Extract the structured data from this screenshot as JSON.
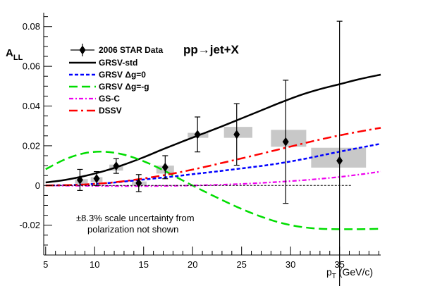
{
  "chart_data": {
    "type": "scatter",
    "ylabel_main": "A",
    "ylabel_sub": "LL",
    "xlabel_main": "p",
    "xlabel_sub": "T",
    "xlabel_unit": " (GeV/c)",
    "process": "pp→jet+X",
    "xlim": [
      4.8,
      39.2
    ],
    "ylim": [
      -0.035,
      0.087
    ],
    "x_ticks": [
      5,
      10,
      15,
      20,
      25,
      30,
      35
    ],
    "y_ticks": [
      -0.02,
      0,
      0.02,
      0.04,
      0.06,
      0.08
    ],
    "y_tick_labels": [
      "-0.02",
      "0",
      "0.02",
      "0.04",
      "0.06",
      "0.08"
    ],
    "data_series": {
      "name": "2006 STAR Data",
      "points": [
        {
          "x": 8.5,
          "y": 0.0028,
          "err": 0.0053,
          "sys_x": [
            8.0,
            9.3
          ],
          "sys_y": [
            0.0005,
            0.0032
          ]
        },
        {
          "x": 10.2,
          "y": 0.0035,
          "err": 0.0035,
          "sys_x": [
            9.6,
            10.8
          ],
          "sys_y": [
            0.0015,
            0.0042
          ]
        },
        {
          "x": 12.2,
          "y": 0.0098,
          "err": 0.0037,
          "sys_x": [
            11.5,
            12.9
          ],
          "sys_y": [
            0.0075,
            0.0105
          ]
        },
        {
          "x": 14.5,
          "y": 0.0012,
          "err": 0.0043,
          "sys_x": [
            13.8,
            15.3
          ],
          "sys_y": [
            0.0,
            0.002
          ]
        },
        {
          "x": 17.2,
          "y": 0.0092,
          "err": 0.0058,
          "sys_x": [
            16.3,
            18.1
          ],
          "sys_y": [
            0.006,
            0.01
          ]
        },
        {
          "x": 20.5,
          "y": 0.0257,
          "err": 0.0088,
          "sys_x": [
            19.5,
            21.6
          ],
          "sys_y": [
            0.024,
            0.0265
          ]
        },
        {
          "x": 24.5,
          "y": 0.0257,
          "err": 0.0155,
          "sys_x": [
            23.2,
            26.1
          ],
          "sys_y": [
            0.024,
            0.0295
          ]
        },
        {
          "x": 29.5,
          "y": 0.022,
          "err": 0.031,
          "sys_x": [
            28.0,
            31.6
          ],
          "sys_y": [
            0.0195,
            0.028
          ]
        },
        {
          "x": 35.0,
          "y": 0.0125,
          "err": 0.0702,
          "sys_x": [
            32.1,
            37.7
          ],
          "sys_y": [
            0.009,
            0.019
          ]
        }
      ]
    },
    "zero_line": true,
    "theory_curves": [
      {
        "name": "GRSV-std",
        "color": "#000000",
        "dash": "",
        "width": 2.5,
        "x": [
          5,
          7,
          9,
          11,
          13,
          15,
          17,
          19,
          21,
          23,
          25,
          27,
          29,
          31,
          33,
          35,
          37,
          39.2
        ],
        "y": [
          0.0015,
          0.0028,
          0.0048,
          0.0073,
          0.0105,
          0.0142,
          0.0183,
          0.0222,
          0.026,
          0.0298,
          0.0338,
          0.0378,
          0.0418,
          0.0455,
          0.0485,
          0.051,
          0.0535,
          0.0558
        ]
      },
      {
        "name": "GRSV Δg=0",
        "color": "#0000ff",
        "dash": "5,3",
        "width": 2.5,
        "x": [
          5,
          8,
          10,
          12,
          15,
          18,
          20,
          22,
          25,
          28,
          31,
          34,
          36,
          39.2
        ],
        "y": [
          0,
          0.0003,
          0.0008,
          0.0015,
          0.003,
          0.0045,
          0.0057,
          0.0068,
          0.0086,
          0.0105,
          0.013,
          0.016,
          0.018,
          0.021
        ]
      },
      {
        "name": "GRSV Δg=-g",
        "color": "#00dd00",
        "dash": "12,6",
        "width": 2.5,
        "x": [
          5,
          7,
          9,
          11,
          13,
          15,
          17,
          19,
          21,
          23,
          25,
          27,
          29,
          31,
          33,
          35,
          37,
          39.2
        ],
        "y": [
          0.0082,
          0.0132,
          0.0163,
          0.017,
          0.0155,
          0.0122,
          0.0077,
          0.0025,
          -0.0025,
          -0.0073,
          -0.0118,
          -0.0157,
          -0.0188,
          -0.0208,
          -0.0218,
          -0.022,
          -0.022,
          -0.0218
        ]
      },
      {
        "name": "GS-C",
        "color": "#ee00ee",
        "dash": "6,3,2,3",
        "width": 2.2,
        "x": [
          5,
          10,
          15,
          20,
          25,
          30,
          34,
          37,
          39.2
        ],
        "y": [
          0,
          -0.0002,
          -0.0003,
          0,
          0.0008,
          0.0022,
          0.0038,
          0.0055,
          0.007
        ]
      },
      {
        "name": "DSSV",
        "color": "#ff0000",
        "dash": "12,5,3,5",
        "width": 2.5,
        "x": [
          5,
          8,
          10,
          12,
          14,
          16,
          18,
          20,
          22,
          24,
          26,
          28,
          30,
          32,
          34,
          36,
          38,
          39.2
        ],
        "y": [
          0,
          0.0003,
          0.0008,
          0.0016,
          0.0028,
          0.0043,
          0.006,
          0.008,
          0.0102,
          0.0125,
          0.0148,
          0.0172,
          0.0196,
          0.022,
          0.0242,
          0.0262,
          0.028,
          0.029
        ]
      }
    ],
    "legend_placement": "top-left",
    "note_line1": "±8.3% scale uncertainty from",
    "note_line2": "polarization not shown"
  }
}
